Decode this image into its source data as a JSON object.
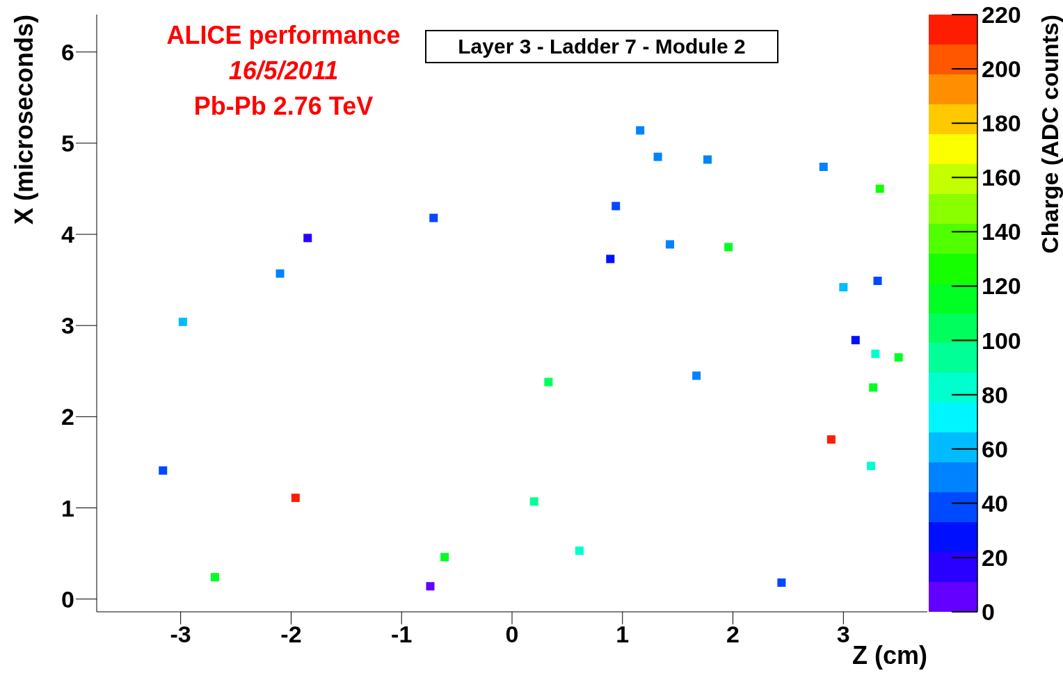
{
  "chart_data": {
    "type": "scatter",
    "title": "Layer 3 - Ladder 7 - Module 2",
    "xlabel": "Z (cm)",
    "ylabel": "X (microseconds)",
    "clabel": "Charge (ADC counts)",
    "annotations": [
      "ALICE performance",
      "16/5/2011",
      "Pb-Pb 2.76 TeV"
    ],
    "x": [
      1.16,
      1.32,
      1.77,
      2.82,
      3.33,
      0.94,
      -0.71,
      -1.85,
      1.43,
      1.96,
      0.89,
      -2.1,
      3.31,
      3.0,
      -2.98,
      3.11,
      3.29,
      3.5,
      1.67,
      0.33,
      3.27,
      2.89,
      3.25,
      -3.16,
      -1.96,
      0.2,
      0.61,
      -0.61,
      -2.69,
      2.44,
      -0.74
    ],
    "values": [
      5.14,
      4.85,
      4.82,
      4.74,
      4.5,
      4.31,
      4.18,
      3.96,
      3.89,
      3.86,
      3.73,
      3.57,
      3.49,
      3.42,
      3.04,
      2.84,
      2.69,
      2.65,
      2.45,
      2.38,
      2.32,
      1.75,
      1.46,
      1.41,
      1.11,
      1.07,
      0.53,
      0.46,
      0.24,
      0.18,
      0.14
    ],
    "cvalues": [
      45,
      45,
      50,
      50,
      130,
      35,
      40,
      15,
      45,
      110,
      30,
      50,
      40,
      60,
      55,
      30,
      80,
      110,
      50,
      100,
      120,
      210,
      80,
      40,
      210,
      90,
      80,
      110,
      110,
      40,
      10
    ],
    "xlim": [
      -3.76,
      3.76
    ],
    "ylim": [
      -0.14,
      6.41
    ],
    "xticks": [
      -3,
      -2,
      -1,
      0,
      1,
      2,
      3
    ],
    "yticks": [
      0,
      1,
      2,
      3,
      4,
      5,
      6
    ],
    "clim": [
      0,
      220
    ],
    "cticks": [
      0,
      20,
      40,
      60,
      80,
      100,
      120,
      140,
      160,
      180,
      200,
      220
    ],
    "marker": "square",
    "grid": false,
    "legend": false
  }
}
